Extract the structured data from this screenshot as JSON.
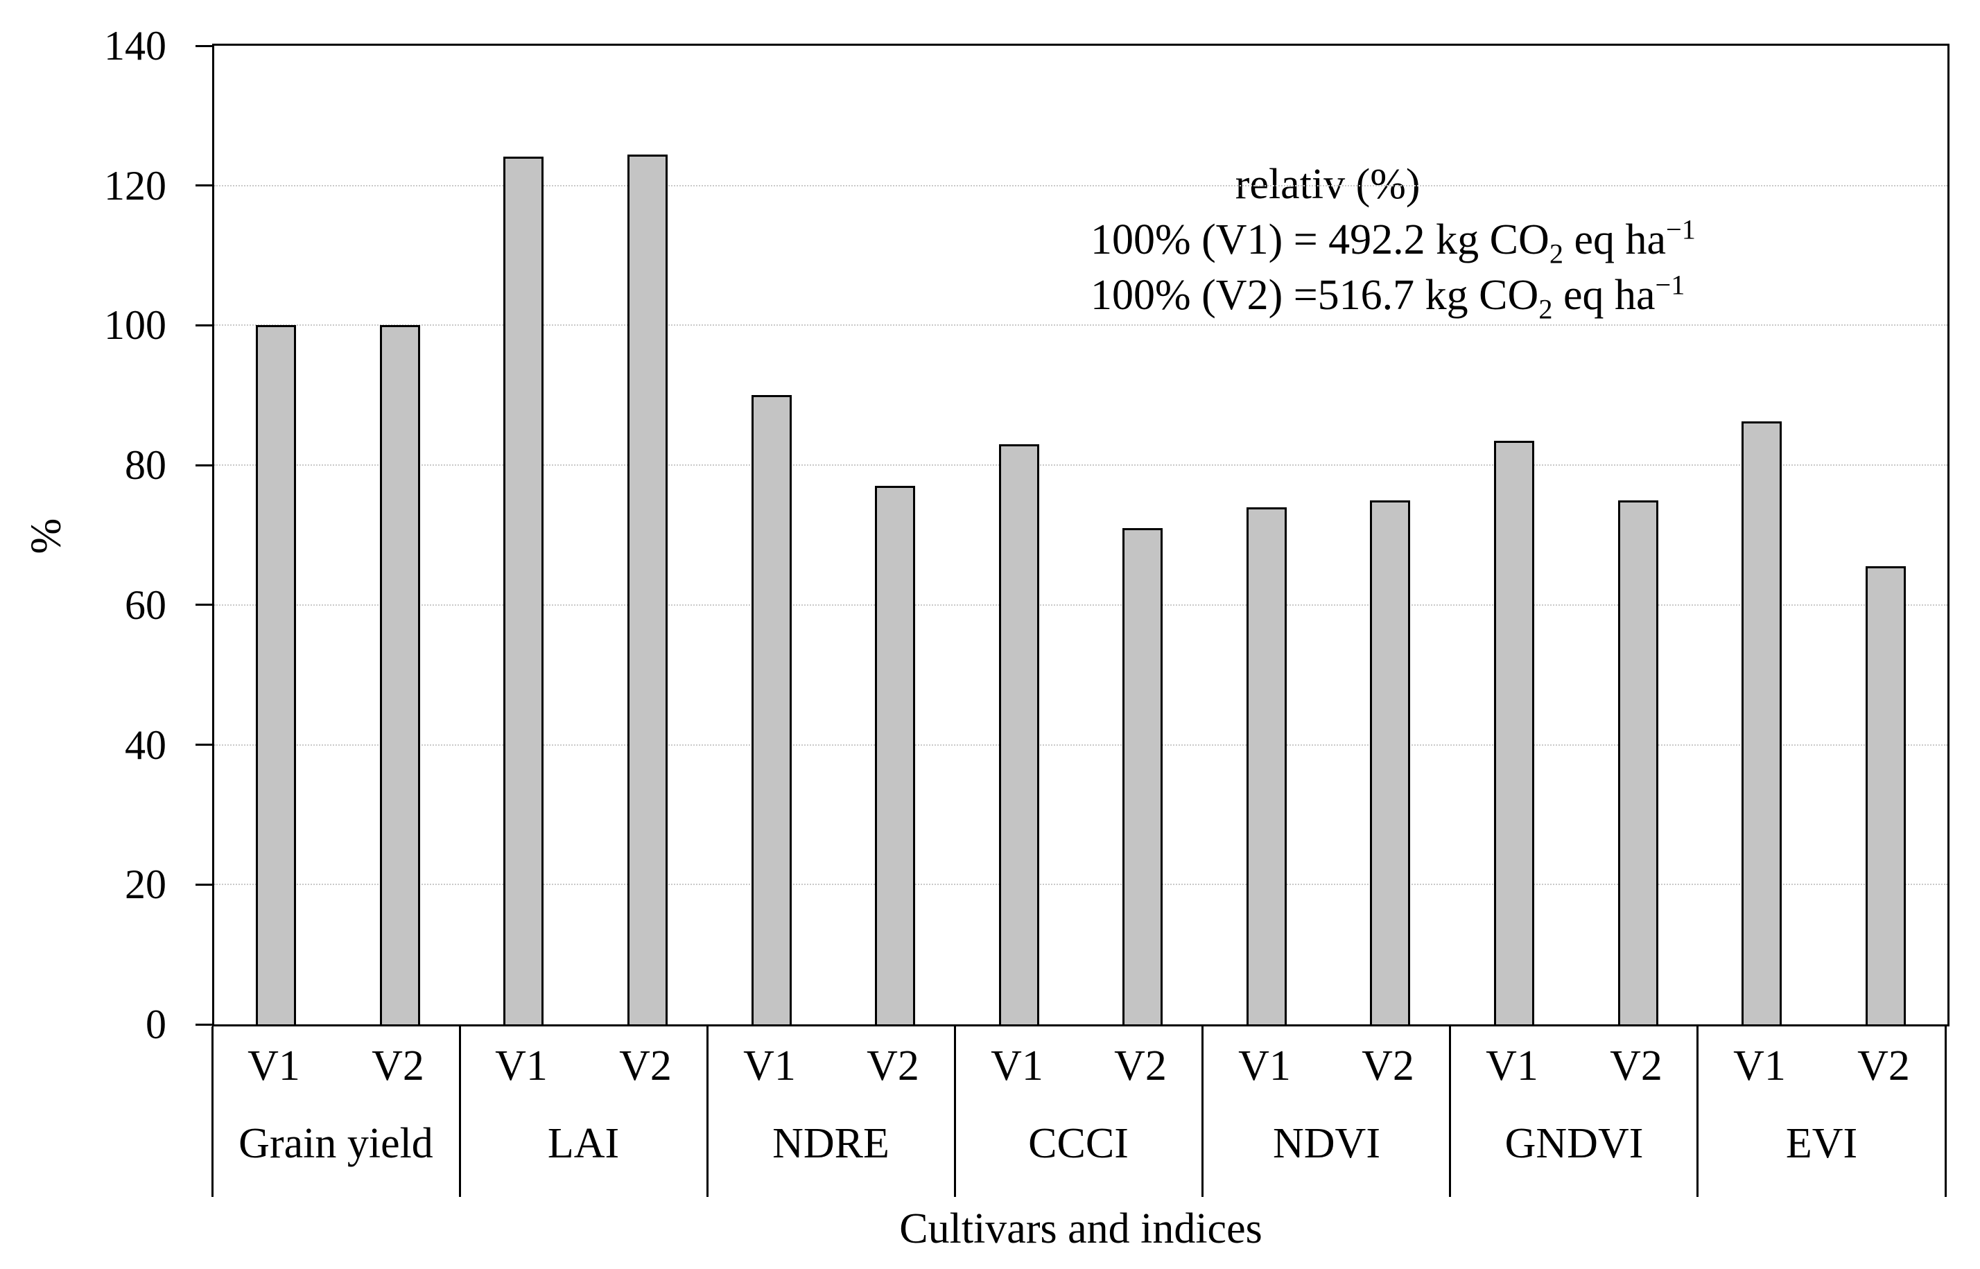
{
  "figure": {
    "background": "#ffffff",
    "y_axis_label": "%",
    "x_axis_label": "Cultivars and indices"
  },
  "annotation": {
    "title": "relativ (%)",
    "lines": [
      {
        "prefix": "100% (V1) = 492.2 kg CO",
        "sub": "2",
        "mid": " eq ha",
        "sup": "−1"
      },
      {
        "prefix": "100% (V2) =516.7 kg CO",
        "sub": "2",
        "mid": " eq ha",
        "sup": "−1"
      }
    ]
  },
  "chart_data": {
    "type": "bar",
    "title": "",
    "xlabel": "Cultivars and indices",
    "ylabel": "%",
    "ylim": [
      0,
      140
    ],
    "yticks": [
      0,
      20,
      40,
      60,
      80,
      100,
      120,
      140
    ],
    "grid": "horizontal-dotted",
    "legend_position": "none",
    "bar_fill_color": "#c4c4c4",
    "bar_border_color": "#000000",
    "gridline_color": "#c9c9c9",
    "categories": [
      "Grain yield",
      "LAI",
      "NDRE",
      "CCCI",
      "NDVI",
      "GNDVI",
      "EVI"
    ],
    "series": [
      {
        "name": "V1",
        "values": [
          100,
          124.1,
          90,
          83,
          74,
          83.5,
          86.3
        ]
      },
      {
        "name": "V2",
        "values": [
          100,
          124.4,
          77,
          71,
          75,
          75,
          65.5
        ]
      }
    ],
    "annotations": [
      "relativ (%)",
      "100% (V1) = 492.2 kg CO₂ eq ha⁻¹",
      "100% (V2) =516.7 kg CO₂ eq ha⁻¹"
    ]
  }
}
